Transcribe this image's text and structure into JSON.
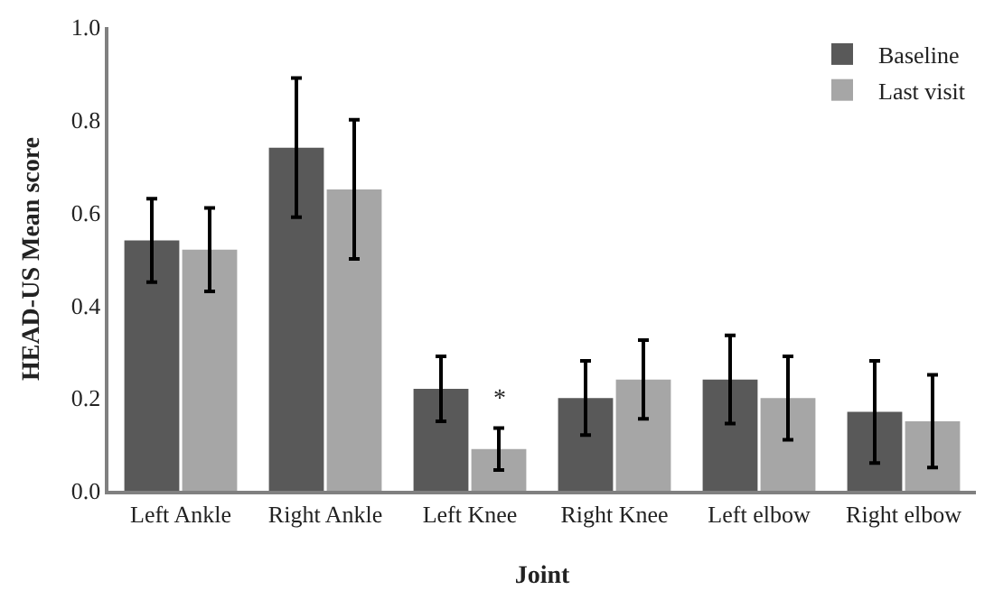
{
  "chart_data": {
    "type": "bar",
    "xlabel": "Joint",
    "ylabel": "HEAD-US Mean score",
    "categories": [
      "Left Ankle",
      "Right Ankle",
      "Left Knee",
      "Right Knee",
      "Left elbow",
      "Right elbow"
    ],
    "series": [
      {
        "name": "Baseline",
        "color": "#595959",
        "values": [
          0.54,
          0.74,
          0.22,
          0.2,
          0.24,
          0.17
        ],
        "errors": [
          [
            0.45,
            0.63
          ],
          [
            0.59,
            0.89
          ],
          [
            0.15,
            0.29
          ],
          [
            0.12,
            0.28
          ],
          [
            0.145,
            0.335
          ],
          [
            0.06,
            0.28
          ]
        ]
      },
      {
        "name": "Last visit",
        "color": "#a6a6a6",
        "values": [
          0.52,
          0.65,
          0.09,
          0.24,
          0.2,
          0.15
        ],
        "errors": [
          [
            0.43,
            0.61
          ],
          [
            0.5,
            0.8
          ],
          [
            0.045,
            0.135
          ],
          [
            0.155,
            0.325
          ],
          [
            0.11,
            0.29
          ],
          [
            0.05,
            0.25
          ]
        ]
      }
    ],
    "annotations": [
      {
        "text": "*",
        "x": "Left Knee",
        "y": 0.16
      }
    ],
    "ylim": [
      0,
      1
    ],
    "yticks": [
      {
        "value": 0,
        "label": "0.0"
      },
      {
        "value": 0.2,
        "label": "0.2"
      },
      {
        "value": 0.4,
        "label": "0.4"
      },
      {
        "value": 0.6,
        "label": "0.6"
      },
      {
        "value": 0.8,
        "label": "0.8"
      },
      {
        "value": 1,
        "label": "1.0"
      }
    ],
    "grid": false,
    "legend": "top right"
  }
}
